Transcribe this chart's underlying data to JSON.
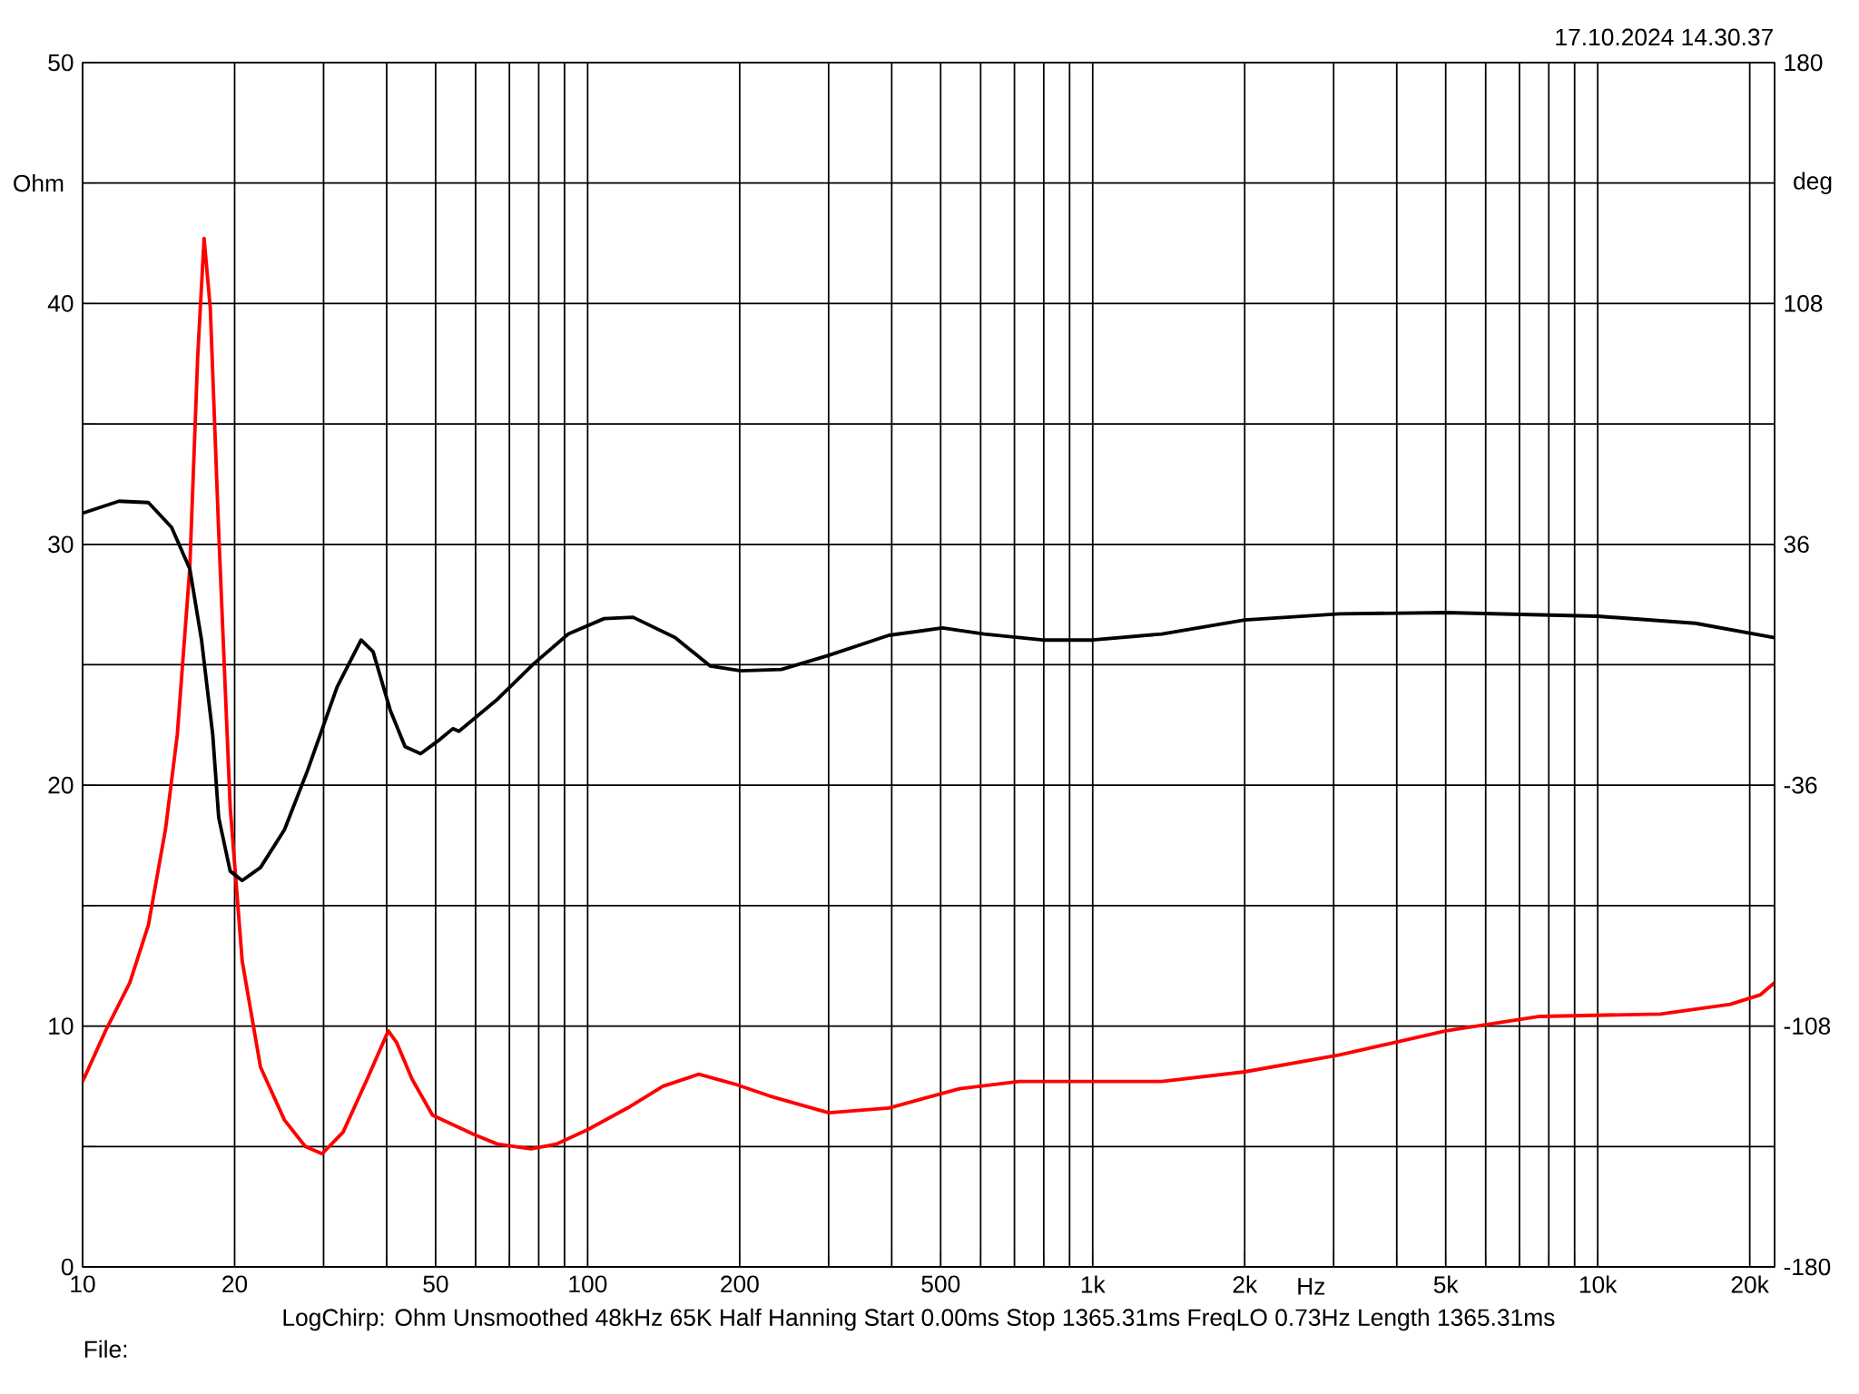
{
  "chart_data": {
    "type": "line",
    "xlabel": "Hz",
    "ylabel": "Ohm",
    "y2label": "deg",
    "log": "x",
    "grid": true,
    "xlim": [
      10,
      22400
    ],
    "ylim": [
      0,
      50
    ],
    "y2lim": [
      -180,
      180
    ],
    "xticks": [
      10,
      20,
      {
        "value": 30,
        "label": null
      },
      {
        "value": 40,
        "label": null
      },
      50,
      {
        "value": 60,
        "label": null
      },
      {
        "value": 70,
        "label": null
      },
      {
        "value": 80,
        "label": null
      },
      {
        "value": 90,
        "label": null
      },
      100,
      200,
      {
        "value": 300,
        "label": null
      },
      {
        "value": 400,
        "label": null
      },
      500,
      {
        "value": 600,
        "label": null
      },
      {
        "value": 700,
        "label": null
      },
      {
        "value": 800,
        "label": null
      },
      {
        "value": 900,
        "label": null
      },
      {
        "value": 1000,
        "label": "1k"
      },
      {
        "value": 2000,
        "label": "2k"
      },
      {
        "value": 3000,
        "label": null
      },
      {
        "value": 4000,
        "label": null
      },
      {
        "value": 5000,
        "label": "5k"
      },
      {
        "value": 6000,
        "label": null
      },
      {
        "value": 7000,
        "label": null
      },
      {
        "value": 8000,
        "label": null
      },
      {
        "value": 9000,
        "label": null
      },
      {
        "value": 10000,
        "label": "10k"
      },
      {
        "value": 20000,
        "label": "20k"
      }
    ],
    "yticks": [
      0,
      {
        "value": 5,
        "label": null
      },
      10,
      {
        "value": 15,
        "label": null
      },
      20,
      {
        "value": 25,
        "label": null
      },
      30,
      {
        "value": 35,
        "label": null
      },
      40,
      {
        "value": 45,
        "label": null
      },
      50
    ],
    "y2ticks": [
      -180,
      -108,
      -36,
      36,
      108,
      180
    ],
    "series": [
      {
        "color": "#ff0000",
        "x": [
          10,
          11.1,
          12.4,
          13.5,
          14.6,
          15.4,
          16.3,
          16.9,
          17.4,
          17.9,
          18.6,
          19.6,
          20.7,
          22.5,
          25.1,
          27.6,
          29.8,
          32.8,
          36.6,
          40.3,
          41.9,
          44.9,
          49.3,
          52.9,
          59.5,
          66.3,
          77.2,
          86.8,
          100,
          120,
          141,
          166,
          195,
          229,
          300,
          395,
          545,
          715,
          1000,
          1370,
          2000,
          3080,
          5000,
          7680,
          13300,
          18300,
          21000,
          22400
        ],
        "values": [
          7.7,
          9.8,
          11.8,
          14.2,
          18.2,
          22.1,
          29.0,
          37.8,
          42.7,
          39.8,
          30.5,
          19.1,
          12.7,
          8.3,
          6.1,
          5.0,
          4.7,
          5.6,
          7.8,
          9.8,
          9.3,
          7.8,
          6.3,
          6.0,
          5.5,
          5.1,
          4.9,
          5.1,
          5.7,
          6.6,
          7.5,
          8.0,
          7.6,
          7.1,
          6.4,
          6.6,
          7.4,
          7.7,
          7.7,
          7.7,
          8.1,
          8.8,
          9.8,
          10.4,
          10.5,
          10.9,
          11.3,
          11.8
        ]
      },
      {
        "color": "#000000",
        "axis": "y2",
        "x": [
          10,
          11.8,
          13.5,
          15.0,
          16.3,
          17.2,
          18.1,
          18.6,
          19.6,
          20.7,
          22.5,
          25.1,
          27.9,
          31.9,
          35.6,
          37.6,
          40.7,
          43.5,
          46.7,
          50.6,
          54.1,
          55.6,
          66.3,
          78.2,
          91.6,
          107.8,
          123,
          149,
          175,
          201,
          242,
          300,
          395,
          504,
          610,
          796,
          1000,
          1370,
          2000,
          3080,
          5000,
          10000,
          15600,
          22400
        ],
        "values": [
          45.3,
          48.9,
          48.5,
          41.1,
          28.7,
          7.4,
          -20.9,
          -45.7,
          -61.7,
          -64.5,
          -60.6,
          -49.3,
          -31.5,
          -6.7,
          7.4,
          3.9,
          -13.8,
          -24.5,
          -26.6,
          -22.7,
          -19.1,
          -19.9,
          -10.3,
          0.3,
          9.2,
          13.8,
          14.2,
          8.1,
          -0.4,
          -1.8,
          -1.4,
          2.8,
          8.8,
          11.0,
          9.2,
          7.4,
          7.4,
          9.2,
          13.4,
          15.2,
          15.6,
          14.5,
          12.4,
          8.1
        ]
      }
    ],
    "annotations": [
      "17.10.2024 14.30.37",
      "LogChirp:  Ohm   Unsmoothed   48kHz   65K   Half Hanning   Start 0.00ms   Stop 1365.31ms   FreqLO 0.73Hz   Length 1365.31ms",
      "File:"
    ]
  }
}
